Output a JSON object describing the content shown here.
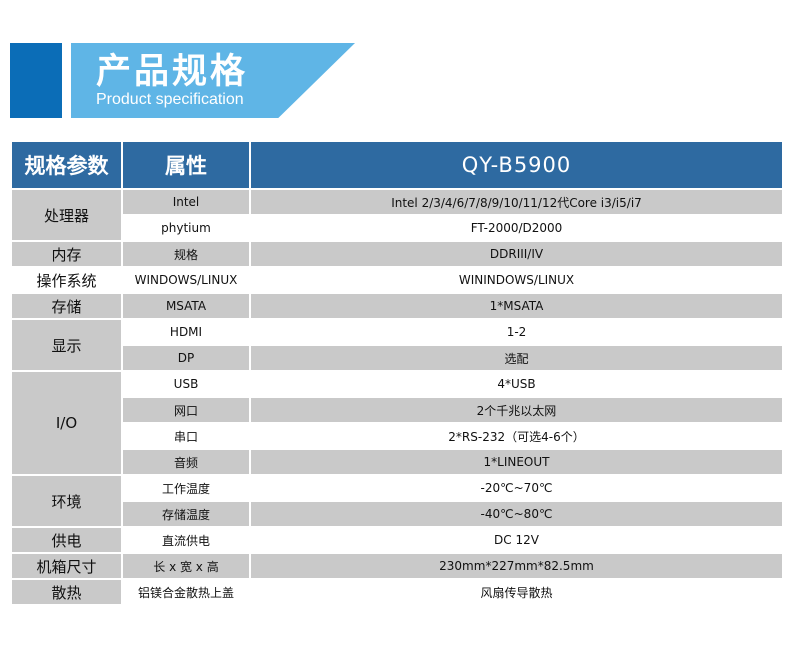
{
  "banner": {
    "title": "产品规格",
    "subtitle": "Product specification",
    "colors": {
      "dark": "#0b6db7",
      "light": "#5fb5e6",
      "header": "#2e6aa1",
      "row_grey": "#c9c9c9"
    }
  },
  "table": {
    "headers": [
      "规格参数",
      "属性",
      "QY-B5900"
    ],
    "rows": [
      {
        "category": "处理器",
        "attr": "Intel",
        "value": "Intel 2/3/4/6/7/8/9/10/11/12代Core i3/i5/i7"
      },
      {
        "attr": "phytium",
        "value": "FT-2000/D2000"
      },
      {
        "category": "内存",
        "attr": "规格",
        "value": "DDRIII/IV"
      },
      {
        "category": "操作系统",
        "attr": "WINDOWS/LINUX",
        "value": "WININDOWS/LINUX"
      },
      {
        "category": "存储",
        "attr": "MSATA",
        "value": "1*MSATA"
      },
      {
        "category": "显示",
        "attr": "HDMI",
        "value": "1-2"
      },
      {
        "attr": "DP",
        "value": "选配"
      },
      {
        "category": "I/O",
        "attr": "USB",
        "value": "4*USB"
      },
      {
        "attr": "网口",
        "value": "2个千兆以太网"
      },
      {
        "attr": "串口",
        "value": "2*RS-232（可选4-6个）"
      },
      {
        "attr": "音频",
        "value": "1*LINEOUT"
      },
      {
        "category": "环境",
        "attr": "工作温度",
        "value": "-20℃~70℃"
      },
      {
        "attr": "存储温度",
        "value": "-40℃~80℃"
      },
      {
        "category": "供电",
        "attr": "直流供电",
        "value": "DC 12V"
      },
      {
        "category": "机箱尺寸",
        "attr": "长 x 宽 x 高",
        "value": "230mm*227mm*82.5mm"
      },
      {
        "category": "散热",
        "attr": "铝镁合金散热上盖",
        "value": "风扇传导散热"
      }
    ]
  }
}
